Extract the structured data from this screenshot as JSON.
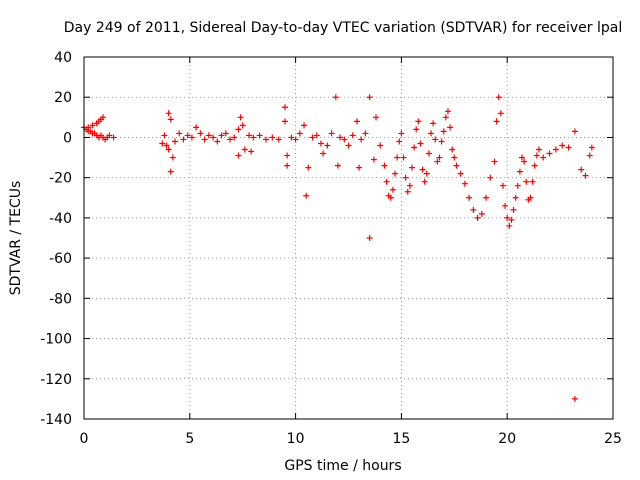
{
  "chart_data": {
    "type": "scatter",
    "title": "Day 249 of 2011, Sidereal Day-to-day VTEC variation (SDTVAR) for receiver lpal",
    "xlabel": "GPS time / hours",
    "ylabel": "SDTVAR / TECUs",
    "xlim": [
      0,
      25
    ],
    "ylim": [
      -140,
      40
    ],
    "xticks": [
      0,
      5,
      10,
      15,
      20,
      25
    ],
    "yticks": [
      40,
      20,
      0,
      -20,
      -40,
      -60,
      -80,
      -100,
      -120,
      -140
    ],
    "grid": true,
    "marker": "+",
    "color": "#ff0000",
    "series": [
      {
        "name": "SDTVAR",
        "points": [
          [
            0.0,
            5
          ],
          [
            0.1,
            4
          ],
          [
            0.2,
            3
          ],
          [
            0.3,
            3
          ],
          [
            0.4,
            2
          ],
          [
            0.5,
            2
          ],
          [
            0.6,
            1
          ],
          [
            0.7,
            0
          ],
          [
            0.8,
            1
          ],
          [
            0.9,
            0
          ],
          [
            1.0,
            -1
          ],
          [
            1.1,
            0
          ],
          [
            1.2,
            1
          ],
          [
            1.4,
            0
          ],
          [
            0.2,
            5
          ],
          [
            0.4,
            6
          ],
          [
            0.6,
            7
          ],
          [
            0.7,
            8
          ],
          [
            0.8,
            9
          ],
          [
            0.9,
            10
          ],
          [
            3.7,
            -3
          ],
          [
            3.8,
            1
          ],
          [
            3.9,
            -4
          ],
          [
            4.0,
            -6
          ],
          [
            4.0,
            12
          ],
          [
            4.1,
            9
          ],
          [
            4.1,
            -17
          ],
          [
            4.2,
            -10
          ],
          [
            4.3,
            -2
          ],
          [
            4.5,
            2
          ],
          [
            4.7,
            -1
          ],
          [
            4.9,
            1
          ],
          [
            5.1,
            0
          ],
          [
            5.3,
            5
          ],
          [
            5.5,
            2
          ],
          [
            5.7,
            -1
          ],
          [
            5.9,
            1
          ],
          [
            6.1,
            0
          ],
          [
            6.3,
            -2
          ],
          [
            6.5,
            1
          ],
          [
            6.7,
            2
          ],
          [
            6.9,
            -1
          ],
          [
            7.1,
            0
          ],
          [
            7.3,
            -9
          ],
          [
            7.3,
            4
          ],
          [
            7.4,
            10
          ],
          [
            7.5,
            6
          ],
          [
            7.6,
            -6
          ],
          [
            7.8,
            1
          ],
          [
            7.9,
            -7
          ],
          [
            8.0,
            0
          ],
          [
            8.3,
            1
          ],
          [
            8.6,
            -1
          ],
          [
            8.9,
            0
          ],
          [
            9.2,
            -1
          ],
          [
            9.5,
            15
          ],
          [
            9.5,
            8
          ],
          [
            9.6,
            -9
          ],
          [
            9.6,
            -14
          ],
          [
            9.8,
            0
          ],
          [
            10.0,
            -1
          ],
          [
            10.2,
            2
          ],
          [
            10.4,
            6
          ],
          [
            10.5,
            -29
          ],
          [
            10.6,
            -15
          ],
          [
            10.8,
            0
          ],
          [
            11.0,
            1
          ],
          [
            11.2,
            -3
          ],
          [
            11.3,
            -8
          ],
          [
            11.5,
            -4
          ],
          [
            11.7,
            2
          ],
          [
            11.9,
            20
          ],
          [
            12.0,
            -14
          ],
          [
            12.1,
            0
          ],
          [
            12.3,
            -1
          ],
          [
            12.5,
            -4
          ],
          [
            12.7,
            1
          ],
          [
            12.9,
            8
          ],
          [
            13.0,
            -15
          ],
          [
            13.1,
            -1
          ],
          [
            13.3,
            2
          ],
          [
            13.5,
            20
          ],
          [
            13.5,
            -50
          ],
          [
            13.7,
            -11
          ],
          [
            13.8,
            10
          ],
          [
            14.0,
            -4
          ],
          [
            14.2,
            -14
          ],
          [
            14.3,
            -22
          ],
          [
            14.4,
            -29
          ],
          [
            14.5,
            -30
          ],
          [
            14.6,
            -26
          ],
          [
            14.7,
            -18
          ],
          [
            14.8,
            -10
          ],
          [
            14.9,
            -2
          ],
          [
            15.0,
            2
          ],
          [
            15.1,
            -10
          ],
          [
            15.2,
            -20
          ],
          [
            15.3,
            -27
          ],
          [
            15.4,
            -24
          ],
          [
            15.5,
            -15
          ],
          [
            15.6,
            -5
          ],
          [
            15.7,
            4
          ],
          [
            15.8,
            8
          ],
          [
            15.9,
            -3
          ],
          [
            16.0,
            -16
          ],
          [
            16.1,
            -22
          ],
          [
            16.2,
            -18
          ],
          [
            16.3,
            -8
          ],
          [
            16.4,
            2
          ],
          [
            16.5,
            7
          ],
          [
            16.6,
            -1
          ],
          [
            16.7,
            -12
          ],
          [
            16.8,
            -10
          ],
          [
            16.9,
            -2
          ],
          [
            17.0,
            3
          ],
          [
            17.1,
            10
          ],
          [
            17.2,
            13
          ],
          [
            17.3,
            5
          ],
          [
            17.4,
            -6
          ],
          [
            17.5,
            -10
          ],
          [
            17.6,
            -14
          ],
          [
            17.8,
            -18
          ],
          [
            18.0,
            -23
          ],
          [
            18.2,
            -30
          ],
          [
            18.4,
            -36
          ],
          [
            18.6,
            -40
          ],
          [
            18.8,
            -38
          ],
          [
            19.0,
            -30
          ],
          [
            19.2,
            -20
          ],
          [
            19.4,
            -12
          ],
          [
            19.5,
            8
          ],
          [
            19.6,
            20
          ],
          [
            19.7,
            12
          ],
          [
            19.8,
            -24
          ],
          [
            19.9,
            -34
          ],
          [
            20.0,
            -40
          ],
          [
            20.1,
            -44
          ],
          [
            20.2,
            -41
          ],
          [
            20.3,
            -36
          ],
          [
            20.4,
            -30
          ],
          [
            20.5,
            -24
          ],
          [
            20.6,
            -17
          ],
          [
            20.7,
            -10
          ],
          [
            20.8,
            -12
          ],
          [
            20.9,
            -22
          ],
          [
            21.0,
            -31
          ],
          [
            21.1,
            -30
          ],
          [
            21.2,
            -22
          ],
          [
            21.3,
            -14
          ],
          [
            21.4,
            -9
          ],
          [
            21.5,
            -6
          ],
          [
            21.7,
            -10
          ],
          [
            22.0,
            -8
          ],
          [
            22.3,
            -6
          ],
          [
            22.6,
            -4
          ],
          [
            22.9,
            -5
          ],
          [
            23.2,
            3
          ],
          [
            23.2,
            -130
          ],
          [
            23.5,
            -16
          ],
          [
            23.7,
            -19
          ],
          [
            23.9,
            -9
          ],
          [
            24.0,
            -5
          ]
        ]
      }
    ]
  }
}
